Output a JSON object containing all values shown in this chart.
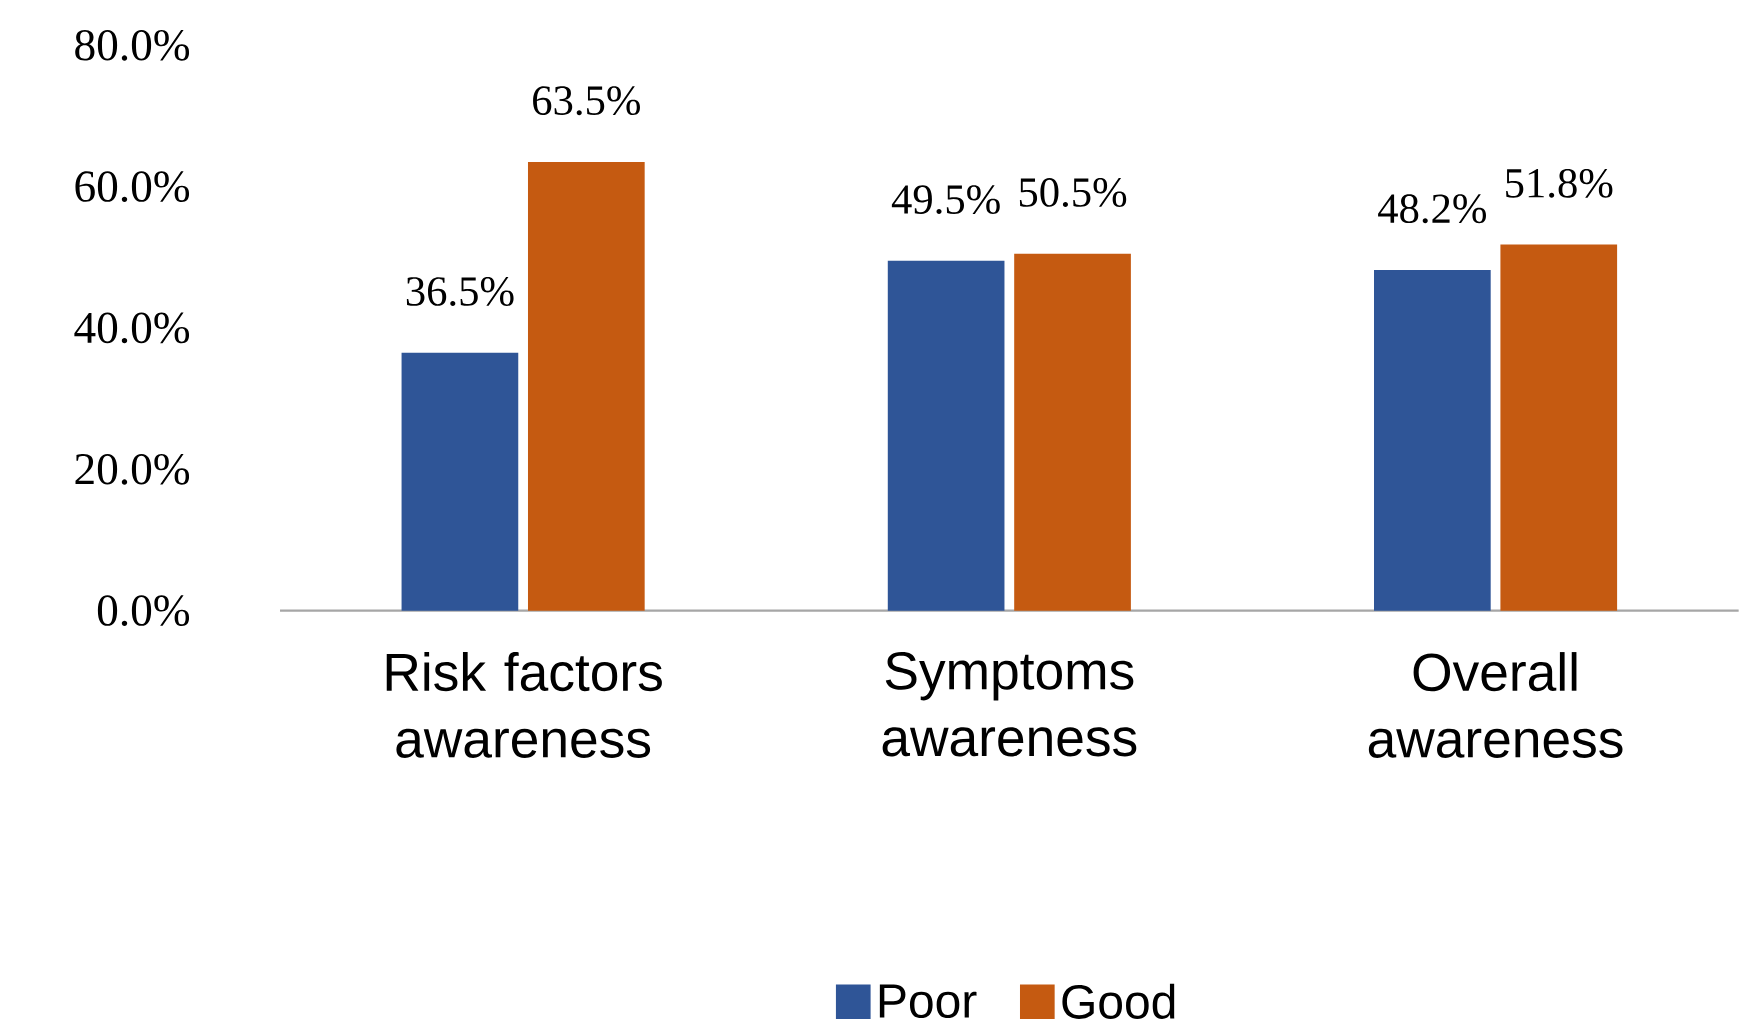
{
  "chart_data": {
    "type": "bar",
    "categories": [
      "Risk factors awareness",
      "Symptoms awareness",
      "Overall awareness"
    ],
    "series": [
      {
        "name": "Poor",
        "color": "#2f5597",
        "values": [
          36.5,
          49.5,
          48.2
        ],
        "value_labels": [
          "36.5%",
          "49.5%",
          "48.2%"
        ]
      },
      {
        "name": "Good",
        "color": "#c55a11",
        "values": [
          63.5,
          50.5,
          51.8
        ],
        "value_labels": [
          "63.5%",
          "50.5%",
          "51.8%"
        ]
      }
    ],
    "ylim": [
      0,
      80
    ],
    "yticks": [
      {
        "value": 0,
        "label": "0.0%"
      },
      {
        "value": 20,
        "label": "20.0%"
      },
      {
        "value": 40,
        "label": "40.0%"
      },
      {
        "value": 60,
        "label": "60.0%"
      },
      {
        "value": 80,
        "label": "80.0%"
      }
    ],
    "grid": false,
    "legend": "bottom"
  }
}
